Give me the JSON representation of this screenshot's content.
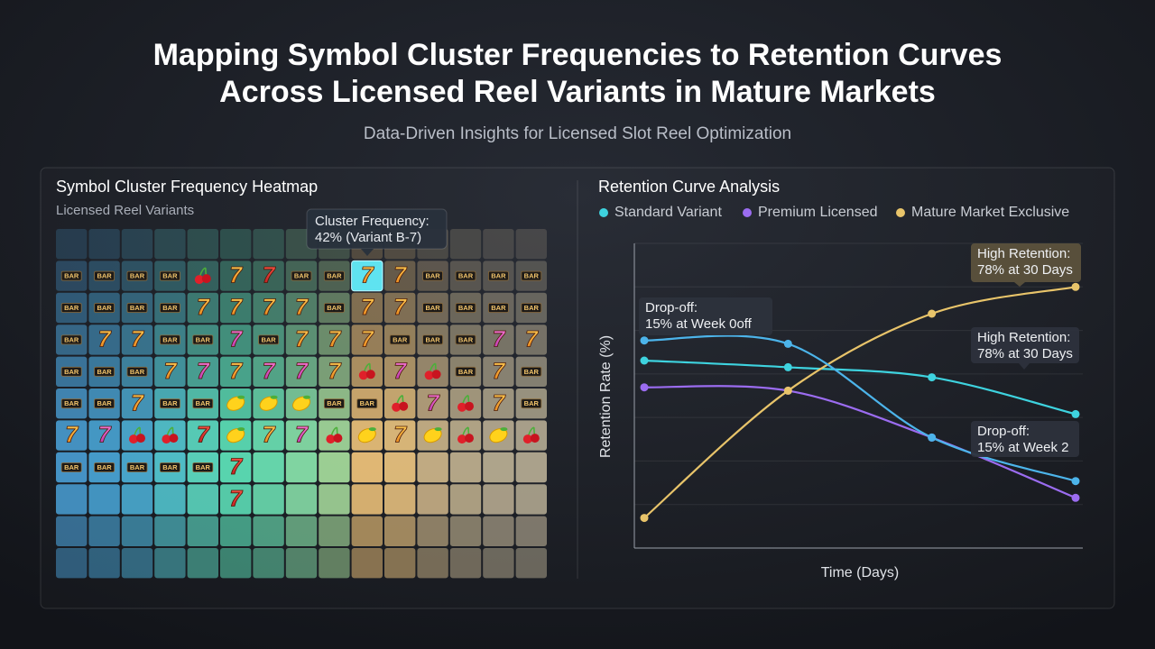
{
  "title": [
    "Mapping Symbol Cluster Frequencies to Retention Curves",
    "Across Licensed Reel Variants in Mature Markets"
  ],
  "subtitle": "Data-Driven Insights for Licensed Slot Reel Optimization",
  "chart_data": [
    {
      "type": "heatmap",
      "title": "Symbol Cluster Frequency Heatmap",
      "subtitle": "Licensed Reel Variants",
      "tooltip": [
        "Cluster Frequency:",
        "42% (Variant B-7)"
      ],
      "symbols": {
        "bar": "BAR",
        "seven": "7"
      }
    },
    {
      "type": "line",
      "title": "Retention Curve Analysis",
      "y_label": "Retention Rate (%)",
      "x_label": "Time (Days)",
      "categories": [
        null,
        null,
        null,
        null
      ],
      "ylim": [
        0,
        91
      ],
      "series": [
        {
          "name": "Standard Variant",
          "color": "#3ed3df",
          "values": [
            56,
            54,
            51,
            40
          ]
        },
        {
          "name": "Premium Licensed",
          "color": "#9b6cf0",
          "values": [
            48,
            47,
            33,
            15
          ]
        },
        {
          "name": "Mature Market Exclusive",
          "color": "#e8c46a",
          "values": [
            9,
            47,
            70,
            78
          ]
        },
        {
          "color": "#4cb4ea",
          "values": [
            62,
            61,
            33,
            20
          ]
        }
      ],
      "annotations": [
        {
          "lines": [
            "Drop-off:",
            "15% at Week 0off"
          ]
        },
        {
          "lines": [
            "High Retention:",
            "78% at 30 Days"
          ]
        },
        {
          "lines": [
            "High Retention:",
            "78% at 30 Days"
          ]
        },
        {
          "lines": [
            "Drop-off:",
            "15% at Week 2"
          ]
        }
      ]
    }
  ]
}
